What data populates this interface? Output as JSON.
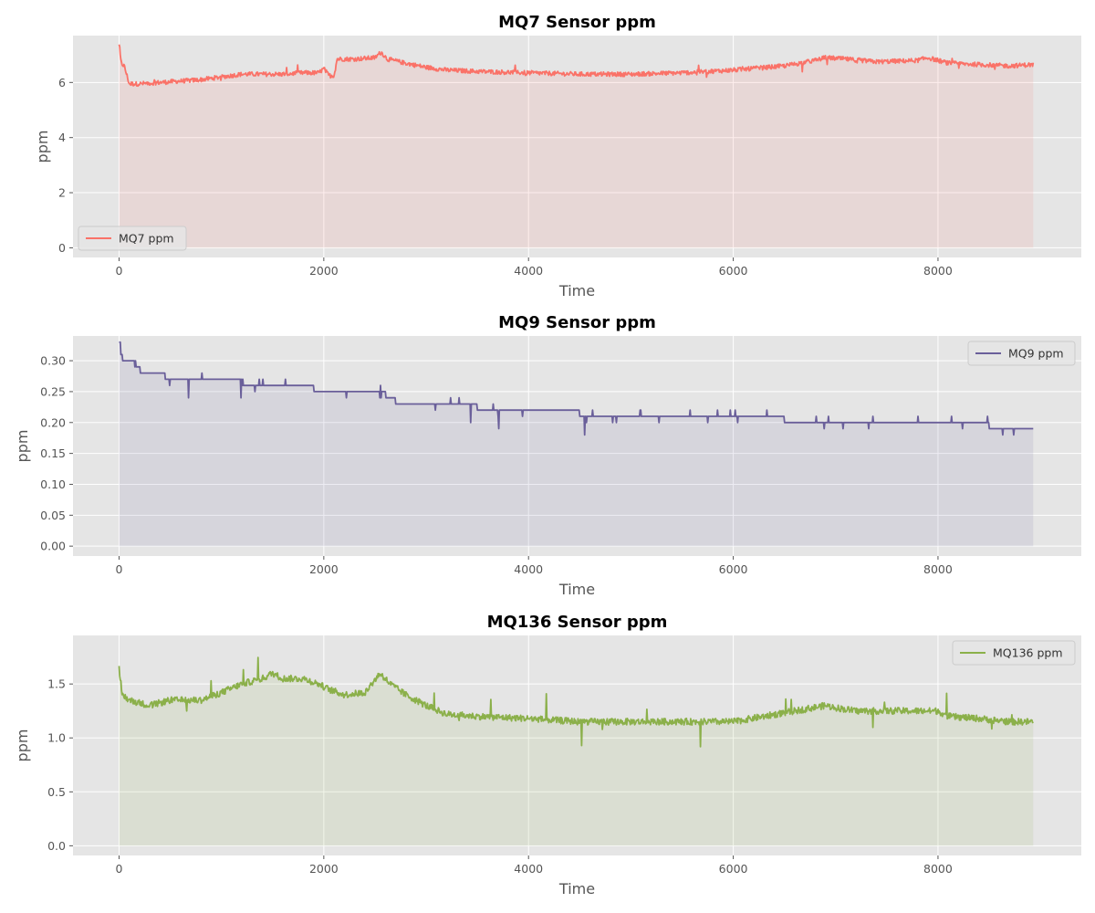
{
  "chart_data": [
    {
      "type": "area",
      "title": "MQ7 Sensor ppm",
      "xlabel": "Time",
      "ylabel": "ppm",
      "xlim": [
        -450,
        9400
      ],
      "ylim": [
        -0.35,
        7.7
      ],
      "xticks": [
        0,
        2000,
        4000,
        6000,
        8000
      ],
      "yticks": [
        0,
        2,
        4,
        6
      ],
      "ytick_labels": [
        "0",
        "2",
        "4",
        "6"
      ],
      "grid": true,
      "legend": "lower-left",
      "color": "#FA7268",
      "series": [
        {
          "name": "MQ7 ppm",
          "x": [
            0,
            20,
            50,
            100,
            200,
            400,
            600,
            800,
            1000,
            1200,
            1400,
            1600,
            1800,
            1950,
            2000,
            2050,
            2100,
            2130,
            2300,
            2500,
            2560,
            2620,
            2800,
            3000,
            3200,
            3500,
            4000,
            4500,
            5000,
            5500,
            6000,
            6500,
            6800,
            6900,
            7100,
            7400,
            7800,
            7900,
            8100,
            8400,
            8700,
            8930
          ],
          "values": [
            7.35,
            6.7,
            6.6,
            5.95,
            5.95,
            6.0,
            6.05,
            6.1,
            6.2,
            6.3,
            6.3,
            6.3,
            6.35,
            6.35,
            6.5,
            6.25,
            6.25,
            6.85,
            6.85,
            6.9,
            7.1,
            6.85,
            6.7,
            6.55,
            6.45,
            6.4,
            6.35,
            6.3,
            6.3,
            6.35,
            6.45,
            6.6,
            6.8,
            6.9,
            6.85,
            6.75,
            6.8,
            6.9,
            6.7,
            6.65,
            6.6,
            6.65
          ]
        }
      ]
    },
    {
      "type": "area",
      "title": "MQ9 Sensor ppm",
      "xlabel": "Time",
      "ylabel": "ppm",
      "xlim": [
        -450,
        9400
      ],
      "ylim": [
        -0.016,
        0.34
      ],
      "xticks": [
        0,
        2000,
        4000,
        6000,
        8000
      ],
      "yticks": [
        0,
        0.05,
        0.1,
        0.15,
        0.2,
        0.25,
        0.3
      ],
      "ytick_labels": [
        "0.00",
        "0.05",
        "0.10",
        "0.15",
        "0.20",
        "0.25",
        "0.30"
      ],
      "grid": true,
      "legend": "upper-right",
      "color": "#6A5F9A",
      "series": [
        {
          "name": "MQ9 ppm",
          "x": [
            0,
            15,
            30,
            100,
            150,
            200,
            400,
            450,
            800,
            1200,
            1600,
            1900,
            2200,
            2600,
            2700,
            2900,
            3200,
            3500,
            4000,
            4500,
            5000,
            5500,
            6000,
            6500,
            7000,
            7500,
            8000,
            8500,
            8930
          ],
          "values": [
            0.33,
            0.31,
            0.3,
            0.3,
            0.29,
            0.28,
            0.28,
            0.27,
            0.27,
            0.26,
            0.26,
            0.25,
            0.25,
            0.24,
            0.23,
            0.23,
            0.23,
            0.22,
            0.22,
            0.21,
            0.21,
            0.21,
            0.21,
            0.2,
            0.2,
            0.2,
            0.2,
            0.19,
            0.19
          ]
        }
      ]
    },
    {
      "type": "area",
      "title": "MQ136 Sensor ppm",
      "xlabel": "Time",
      "ylabel": "ppm",
      "xlim": [
        -450,
        9400
      ],
      "ylim": [
        -0.09,
        1.95
      ],
      "xticks": [
        0,
        2000,
        4000,
        6000,
        8000
      ],
      "yticks": [
        0,
        0.5,
        1.0,
        1.5
      ],
      "ytick_labels": [
        "0.0",
        "0.5",
        "1.0",
        "1.5"
      ],
      "grid": true,
      "legend": "upper-right",
      "color": "#8BB04A",
      "series": [
        {
          "name": "MQ136 ppm",
          "x": [
            0,
            30,
            100,
            300,
            500,
            800,
            1000,
            1200,
            1400,
            1500,
            1600,
            1800,
            1950,
            2050,
            2200,
            2400,
            2550,
            2650,
            2800,
            3000,
            3200,
            3500,
            4000,
            4500,
            5000,
            5500,
            6000,
            6300,
            6600,
            6900,
            7000,
            7200,
            7600,
            8000,
            8100,
            8400,
            8700,
            8930
          ],
          "values": [
            1.65,
            1.4,
            1.35,
            1.3,
            1.35,
            1.35,
            1.42,
            1.5,
            1.55,
            1.6,
            1.55,
            1.55,
            1.5,
            1.45,
            1.4,
            1.42,
            1.6,
            1.5,
            1.4,
            1.3,
            1.22,
            1.2,
            1.18,
            1.15,
            1.15,
            1.15,
            1.15,
            1.2,
            1.25,
            1.3,
            1.28,
            1.25,
            1.25,
            1.25,
            1.2,
            1.18,
            1.15,
            1.15
          ]
        }
      ]
    }
  ]
}
